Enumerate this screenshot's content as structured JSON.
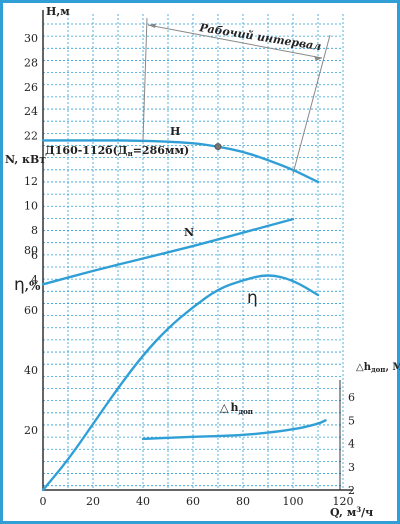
{
  "chart_data": {
    "type": "line",
    "pump_label": "Д160-112б(Д",
    "pump_label_sub": "н",
    "pump_label_tail": "=286мм)",
    "working_range_label": "Рабочий интервал",
    "x_axis": {
      "label": "Q, м",
      "label_sup": "3",
      "label_tail": "/ч",
      "range": [
        0,
        120
      ],
      "ticks": [
        0,
        20,
        40,
        60,
        80,
        100,
        120
      ]
    },
    "head_axis": {
      "label": "H,м",
      "range": [
        20,
        32
      ],
      "ticks": [
        22,
        24,
        26,
        28,
        30
      ]
    },
    "power_axis": {
      "label": "N, кВт",
      "range": [
        2,
        14
      ],
      "ticks": [
        4,
        6,
        8,
        10,
        12
      ]
    },
    "eff_axis": {
      "label": "η",
      "label_tail": ",%",
      "range": [
        0,
        90
      ],
      "ticks": [
        20,
        40,
        60,
        80
      ]
    },
    "npsh_axis": {
      "label": "△h",
      "label_sub": "доп",
      "label_tail": ", М",
      "range": [
        2,
        6.8
      ],
      "ticks": [
        2,
        3,
        4,
        5,
        6
      ]
    },
    "series": [
      {
        "name": "H",
        "color": "#2f9fd6",
        "x": [
          0,
          20,
          40,
          60,
          70,
          80,
          90,
          100,
          105,
          110
        ],
        "values": [
          21.6,
          21.6,
          21.6,
          21.4,
          21.1,
          20.7,
          20.0,
          19.2,
          18.7,
          18.2
        ]
      },
      {
        "name": "N",
        "color": "#2f9fd6",
        "x": [
          0,
          20,
          40,
          60,
          80,
          100
        ],
        "values": [
          3.6,
          4.7,
          5.7,
          6.7,
          7.8,
          8.9
        ]
      },
      {
        "name": "η",
        "color": "#2f9fd6",
        "x": [
          0,
          10,
          20,
          30,
          40,
          50,
          60,
          70,
          80,
          90,
          100,
          110
        ],
        "values": [
          0,
          10,
          22,
          34,
          45,
          54,
          61,
          67,
          70,
          72,
          70,
          65
        ]
      },
      {
        "name": "h",
        "name_prefix": "△",
        "name_sub": "доп",
        "color": "#2f9fd6",
        "x": [
          40,
          60,
          80,
          100,
          110,
          113
        ],
        "values": [
          4.2,
          4.3,
          4.35,
          4.6,
          4.85,
          5.0
        ]
      }
    ],
    "operating_point": {
      "x": 70,
      "y": 21.1
    },
    "working_range": [
      40,
      100
    ],
    "grid": true
  }
}
